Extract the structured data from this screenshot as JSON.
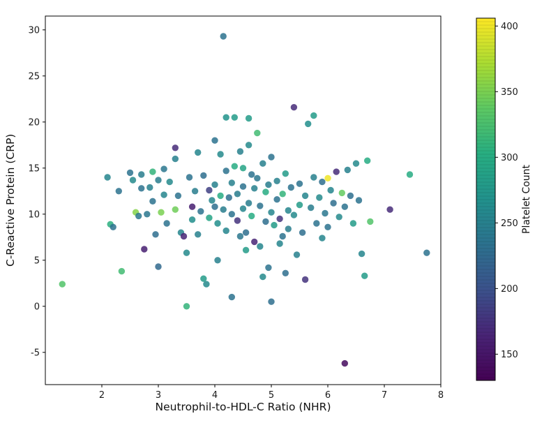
{
  "chart_data": {
    "type": "scatter",
    "title": "",
    "xlabel": "Neutrophil-to-HDL-C Ratio (NHR)",
    "ylabel": "C-Reactive Protein (CRP)",
    "xlim": [
      1.0,
      8.0
    ],
    "ylim": [
      -8.5,
      31.5
    ],
    "xticks": [
      2,
      3,
      4,
      5,
      6,
      7,
      8
    ],
    "yticks": [
      -5,
      0,
      5,
      10,
      15,
      20,
      25,
      30
    ],
    "grid": false,
    "marker": {
      "radius_px": 4.7,
      "alpha": 0.85,
      "colormap": "viridis"
    },
    "colorbar": {
      "label": "Platelet Count",
      "ticks": [
        150,
        200,
        250,
        300,
        350,
        400
      ],
      "vmin": 130,
      "vmax": 406,
      "position": "right"
    },
    "points": [
      [
        1.3,
        2.4,
        330
      ],
      [
        2.1,
        14.0,
        255
      ],
      [
        2.15,
        8.9,
        305
      ],
      [
        2.2,
        8.6,
        235
      ],
      [
        2.3,
        12.5,
        235
      ],
      [
        2.35,
        3.8,
        320
      ],
      [
        2.5,
        14.5,
        235
      ],
      [
        2.55,
        13.7,
        260
      ],
      [
        2.6,
        10.2,
        355
      ],
      [
        2.65,
        9.8,
        240
      ],
      [
        2.7,
        14.3,
        245
      ],
      [
        2.7,
        12.8,
        235
      ],
      [
        2.75,
        6.2,
        160
      ],
      [
        2.8,
        10.0,
        240
      ],
      [
        2.85,
        12.9,
        250
      ],
      [
        2.9,
        14.6,
        310
      ],
      [
        2.9,
        11.4,
        235
      ],
      [
        2.95,
        7.8,
        230
      ],
      [
        3.0,
        13.7,
        245
      ],
      [
        3.0,
        4.3,
        225
      ],
      [
        3.05,
        10.2,
        350
      ],
      [
        3.1,
        14.9,
        240
      ],
      [
        3.1,
        12.1,
        255
      ],
      [
        3.15,
        9.0,
        235
      ],
      [
        3.2,
        13.5,
        260
      ],
      [
        3.3,
        17.2,
        170
      ],
      [
        3.3,
        16.0,
        250
      ],
      [
        3.3,
        10.5,
        345
      ],
      [
        3.35,
        12.0,
        235
      ],
      [
        3.4,
        8.0,
        255
      ],
      [
        3.45,
        7.6,
        165
      ],
      [
        3.5,
        0.0,
        310
      ],
      [
        3.5,
        5.8,
        260
      ],
      [
        3.55,
        14.0,
        235
      ],
      [
        3.6,
        10.8,
        160
      ],
      [
        3.6,
        9.4,
        265
      ],
      [
        3.65,
        12.5,
        245
      ],
      [
        3.7,
        16.7,
        255
      ],
      [
        3.7,
        7.8,
        250
      ],
      [
        3.75,
        10.3,
        235
      ],
      [
        3.8,
        14.2,
        230
      ],
      [
        3.8,
        3.0,
        280
      ],
      [
        3.85,
        2.4,
        260
      ],
      [
        3.9,
        12.6,
        185
      ],
      [
        3.9,
        9.6,
        290
      ],
      [
        3.95,
        11.5,
        255
      ],
      [
        4.0,
        18.0,
        235
      ],
      [
        4.0,
        13.2,
        250
      ],
      [
        4.0,
        10.8,
        230
      ],
      [
        4.05,
        9.0,
        265
      ],
      [
        4.05,
        5.0,
        250
      ],
      [
        4.1,
        16.5,
        260
      ],
      [
        4.1,
        12.0,
        300
      ],
      [
        4.15,
        29.3,
        235
      ],
      [
        4.15,
        10.5,
        245
      ],
      [
        4.2,
        20.5,
        270
      ],
      [
        4.2,
        14.7,
        235
      ],
      [
        4.2,
        8.2,
        255
      ],
      [
        4.25,
        11.8,
        230
      ],
      [
        4.3,
        13.4,
        250
      ],
      [
        4.3,
        10.0,
        235
      ],
      [
        4.3,
        1.0,
        235
      ],
      [
        4.35,
        20.5,
        280
      ],
      [
        4.35,
        15.2,
        300
      ],
      [
        4.4,
        12.2,
        245
      ],
      [
        4.4,
        9.3,
        175
      ],
      [
        4.45,
        16.8,
        250
      ],
      [
        4.45,
        7.6,
        240
      ],
      [
        4.5,
        15.0,
        290
      ],
      [
        4.5,
        13.0,
        235
      ],
      [
        4.5,
        10.6,
        255
      ],
      [
        4.55,
        8.0,
        230
      ],
      [
        4.55,
        6.1,
        280
      ],
      [
        4.6,
        20.4,
        280
      ],
      [
        4.6,
        17.5,
        260
      ],
      [
        4.6,
        11.2,
        245
      ],
      [
        4.65,
        14.3,
        235
      ],
      [
        4.65,
        9.8,
        300
      ],
      [
        4.7,
        12.8,
        250
      ],
      [
        4.7,
        7.0,
        165
      ],
      [
        4.75,
        18.8,
        320
      ],
      [
        4.75,
        13.9,
        240
      ],
      [
        4.8,
        10.9,
        235
      ],
      [
        4.8,
        6.5,
        255
      ],
      [
        4.85,
        15.5,
        250
      ],
      [
        4.85,
        3.2,
        260
      ],
      [
        4.9,
        12.4,
        300
      ],
      [
        4.9,
        9.2,
        230
      ],
      [
        4.95,
        13.2,
        245
      ],
      [
        4.95,
        4.2,
        235
      ],
      [
        5.0,
        16.2,
        235
      ],
      [
        5.0,
        10.2,
        255
      ],
      [
        5.0,
        0.5,
        230
      ],
      [
        5.05,
        8.8,
        280
      ],
      [
        5.1,
        13.6,
        250
      ],
      [
        5.1,
        11.6,
        235
      ],
      [
        5.15,
        9.5,
        175
      ],
      [
        5.15,
        6.8,
        255
      ],
      [
        5.2,
        12.2,
        310
      ],
      [
        5.2,
        7.6,
        235
      ],
      [
        5.25,
        14.4,
        280
      ],
      [
        5.25,
        3.6,
        230
      ],
      [
        5.3,
        10.4,
        255
      ],
      [
        5.3,
        8.4,
        245
      ],
      [
        5.35,
        12.9,
        235
      ],
      [
        5.4,
        21.6,
        170
      ],
      [
        5.4,
        9.9,
        260
      ],
      [
        5.45,
        5.6,
        250
      ],
      [
        5.5,
        13.3,
        235
      ],
      [
        5.5,
        11.0,
        280
      ],
      [
        5.55,
        8.0,
        230
      ],
      [
        5.6,
        12.0,
        255
      ],
      [
        5.6,
        2.9,
        175
      ],
      [
        5.65,
        19.8,
        265
      ],
      [
        5.7,
        10.7,
        245
      ],
      [
        5.75,
        20.7,
        280
      ],
      [
        5.75,
        14.0,
        250
      ],
      [
        5.8,
        9.0,
        235
      ],
      [
        5.85,
        11.8,
        260
      ],
      [
        5.9,
        13.5,
        230
      ],
      [
        5.9,
        7.4,
        255
      ],
      [
        5.95,
        10.1,
        240
      ],
      [
        6.0,
        13.9,
        400
      ],
      [
        6.0,
        8.6,
        235
      ],
      [
        6.05,
        12.6,
        255
      ],
      [
        6.1,
        11.2,
        230
      ],
      [
        6.15,
        14.6,
        170
      ],
      [
        6.2,
        9.7,
        260
      ],
      [
        6.25,
        12.3,
        340
      ],
      [
        6.3,
        -6.2,
        140
      ],
      [
        6.3,
        10.8,
        235
      ],
      [
        6.35,
        14.8,
        250
      ],
      [
        6.4,
        12.0,
        230
      ],
      [
        6.45,
        9.0,
        280
      ],
      [
        6.5,
        15.5,
        260
      ],
      [
        6.55,
        11.5,
        235
      ],
      [
        6.6,
        5.7,
        255
      ],
      [
        6.65,
        3.3,
        280
      ],
      [
        6.7,
        15.8,
        300
      ],
      [
        6.75,
        9.2,
        330
      ],
      [
        7.1,
        10.5,
        170
      ],
      [
        7.45,
        14.3,
        300
      ],
      [
        7.75,
        5.8,
        235
      ]
    ]
  }
}
